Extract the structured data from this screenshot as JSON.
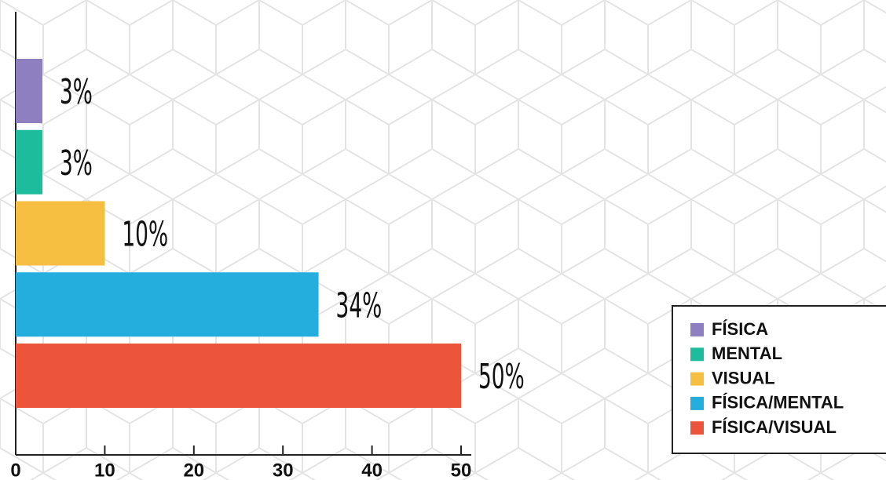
{
  "chart_data": {
    "type": "bar",
    "orientation": "horizontal",
    "categories": [
      "FÍSICA",
      "MENTAL",
      "VISUAL",
      "FÍSICA/MENTAL",
      "FÍSICA/VISUAL"
    ],
    "values": [
      3,
      3,
      10,
      34,
      50
    ],
    "value_labels": [
      "3%",
      "3%",
      "10%",
      "34%",
      "50%"
    ],
    "colors": [
      "#8e7fc0",
      "#1cbc9c",
      "#f7bf41",
      "#24aedd",
      "#ec553b"
    ],
    "xlim": [
      0,
      50
    ],
    "xticks": [
      0,
      10,
      20,
      30,
      40,
      50
    ],
    "legend": "bottom-right"
  }
}
